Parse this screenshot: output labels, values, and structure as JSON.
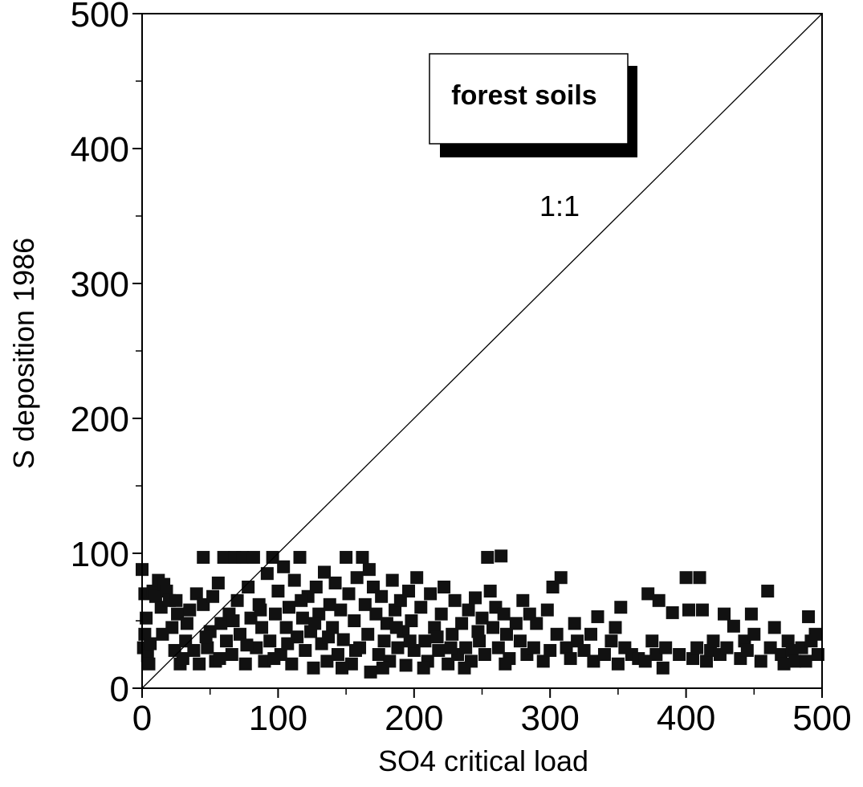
{
  "chart_data": {
    "type": "scatter",
    "title": "",
    "xlabel": "SO4 critical load",
    "ylabel": "S deposition 1986",
    "xlim": [
      0,
      500
    ],
    "ylim": [
      0,
      500
    ],
    "xticks": [
      "0",
      "100",
      "200",
      "300",
      "400",
      "500"
    ],
    "yticks": [
      "0",
      "100",
      "200",
      "300",
      "400",
      "500"
    ],
    "grid": false,
    "legend": {
      "position": "top-center",
      "label": "forest soils"
    },
    "annotations": [
      {
        "text": "1:1",
        "x": 307,
        "y": 350
      }
    ],
    "reference_line": {
      "name": "1:1",
      "points": [
        [
          0,
          0
        ],
        [
          500,
          500
        ]
      ]
    },
    "series": [
      {
        "marker": "square",
        "color": "#111111",
        "points": [
          [
            0,
            88
          ],
          [
            2,
            70
          ],
          [
            3,
            52
          ],
          [
            2,
            40
          ],
          [
            1,
            30
          ],
          [
            4,
            24
          ],
          [
            6,
            33
          ],
          [
            8,
            72
          ],
          [
            10,
            68
          ],
          [
            12,
            80
          ],
          [
            14,
            60
          ],
          [
            16,
            77
          ],
          [
            18,
            72
          ],
          [
            20,
            65
          ],
          [
            22,
            45
          ],
          [
            24,
            28
          ],
          [
            26,
            55
          ],
          [
            28,
            18
          ],
          [
            30,
            22
          ],
          [
            32,
            35
          ],
          [
            35,
            58
          ],
          [
            38,
            28
          ],
          [
            40,
            70
          ],
          [
            42,
            18
          ],
          [
            45,
            97
          ],
          [
            45,
            62
          ],
          [
            48,
            30
          ],
          [
            50,
            42
          ],
          [
            52,
            68
          ],
          [
            54,
            20
          ],
          [
            56,
            78
          ],
          [
            58,
            48
          ],
          [
            60,
            97
          ],
          [
            62,
            35
          ],
          [
            64,
            55
          ],
          [
            66,
            25
          ],
          [
            68,
            97
          ],
          [
            70,
            65
          ],
          [
            72,
            40
          ],
          [
            74,
            97
          ],
          [
            76,
            18
          ],
          [
            78,
            75
          ],
          [
            80,
            52
          ],
          [
            82,
            97
          ],
          [
            84,
            30
          ],
          [
            86,
            62
          ],
          [
            88,
            45
          ],
          [
            90,
            20
          ],
          [
            92,
            85
          ],
          [
            94,
            35
          ],
          [
            96,
            97
          ],
          [
            98,
            55
          ],
          [
            100,
            72
          ],
          [
            102,
            25
          ],
          [
            104,
            90
          ],
          [
            106,
            45
          ],
          [
            108,
            60
          ],
          [
            110,
            18
          ],
          [
            112,
            80
          ],
          [
            114,
            38
          ],
          [
            116,
            97
          ],
          [
            118,
            52
          ],
          [
            120,
            28
          ],
          [
            122,
            68
          ],
          [
            124,
            42
          ],
          [
            126,
            15
          ],
          [
            128,
            75
          ],
          [
            130,
            55
          ],
          [
            132,
            33
          ],
          [
            134,
            86
          ],
          [
            136,
            20
          ],
          [
            138,
            62
          ],
          [
            140,
            45
          ],
          [
            142,
            78
          ],
          [
            144,
            25
          ],
          [
            146,
            58
          ],
          [
            148,
            36
          ],
          [
            150,
            97
          ],
          [
            152,
            70
          ],
          [
            154,
            18
          ],
          [
            156,
            50
          ],
          [
            158,
            82
          ],
          [
            160,
            30
          ],
          [
            162,
            97
          ],
          [
            164,
            62
          ],
          [
            166,
            40
          ],
          [
            168,
            12
          ],
          [
            170,
            75
          ],
          [
            172,
            55
          ],
          [
            174,
            25
          ],
          [
            176,
            68
          ],
          [
            178,
            35
          ],
          [
            180,
            48
          ],
          [
            182,
            20
          ],
          [
            184,
            80
          ],
          [
            186,
            58
          ],
          [
            188,
            30
          ],
          [
            190,
            65
          ],
          [
            192,
            42
          ],
          [
            194,
            17
          ],
          [
            196,
            72
          ],
          [
            198,
            50
          ],
          [
            200,
            28
          ],
          [
            202,
            82
          ],
          [
            205,
            60
          ],
          [
            208,
            35
          ],
          [
            210,
            20
          ],
          [
            212,
            70
          ],
          [
            215,
            45
          ],
          [
            218,
            28
          ],
          [
            220,
            55
          ],
          [
            222,
            75
          ],
          [
            225,
            18
          ],
          [
            228,
            40
          ],
          [
            230,
            65
          ],
          [
            232,
            25
          ],
          [
            235,
            48
          ],
          [
            238,
            30
          ],
          [
            240,
            58
          ],
          [
            242,
            20
          ],
          [
            245,
            67
          ],
          [
            248,
            35
          ],
          [
            250,
            52
          ],
          [
            252,
            25
          ],
          [
            254,
            97
          ],
          [
            256,
            72
          ],
          [
            258,
            45
          ],
          [
            260,
            60
          ],
          [
            262,
            30
          ],
          [
            264,
            98
          ],
          [
            266,
            55
          ],
          [
            268,
            40
          ],
          [
            270,
            22
          ],
          [
            275,
            48
          ],
          [
            278,
            35
          ],
          [
            280,
            65
          ],
          [
            283,
            25
          ],
          [
            285,
            55
          ],
          [
            288,
            30
          ],
          [
            290,
            48
          ],
          [
            295,
            20
          ],
          [
            298,
            58
          ],
          [
            300,
            28
          ],
          [
            302,
            75
          ],
          [
            305,
            40
          ],
          [
            308,
            82
          ],
          [
            312,
            30
          ],
          [
            315,
            22
          ],
          [
            318,
            48
          ],
          [
            320,
            35
          ],
          [
            325,
            28
          ],
          [
            330,
            40
          ],
          [
            332,
            20
          ],
          [
            335,
            53
          ],
          [
            340,
            25
          ],
          [
            345,
            35
          ],
          [
            348,
            45
          ],
          [
            350,
            18
          ],
          [
            352,
            60
          ],
          [
            355,
            30
          ],
          [
            360,
            25
          ],
          [
            365,
            22
          ],
          [
            370,
            20
          ],
          [
            372,
            70
          ],
          [
            375,
            35
          ],
          [
            378,
            25
          ],
          [
            380,
            65
          ],
          [
            383,
            15
          ],
          [
            385,
            30
          ],
          [
            390,
            56
          ],
          [
            395,
            25
          ],
          [
            400,
            82
          ],
          [
            402,
            58
          ],
          [
            405,
            22
          ],
          [
            408,
            30
          ],
          [
            410,
            82
          ],
          [
            412,
            58
          ],
          [
            415,
            20
          ],
          [
            418,
            28
          ],
          [
            420,
            35
          ],
          [
            425,
            25
          ],
          [
            428,
            55
          ],
          [
            430,
            30
          ],
          [
            435,
            46
          ],
          [
            440,
            22
          ],
          [
            443,
            35
          ],
          [
            445,
            28
          ],
          [
            448,
            55
          ],
          [
            450,
            40
          ],
          [
            455,
            20
          ],
          [
            460,
            72
          ],
          [
            462,
            30
          ],
          [
            465,
            45
          ],
          [
            470,
            25
          ],
          [
            472,
            18
          ],
          [
            475,
            35
          ],
          [
            478,
            28
          ],
          [
            480,
            20
          ],
          [
            485,
            30
          ],
          [
            488,
            20
          ],
          [
            490,
            53
          ],
          [
            492,
            35
          ],
          [
            495,
            40
          ],
          [
            497,
            25
          ],
          [
            5,
            18
          ],
          [
            15,
            40
          ],
          [
            25,
            65
          ],
          [
            33,
            48
          ],
          [
            47,
            38
          ],
          [
            57,
            22
          ],
          [
            67,
            50
          ],
          [
            77,
            32
          ],
          [
            87,
            58
          ],
          [
            97,
            22
          ],
          [
            107,
            33
          ],
          [
            117,
            65
          ],
          [
            127,
            48
          ],
          [
            137,
            38
          ],
          [
            147,
            15
          ],
          [
            157,
            28
          ],
          [
            167,
            88
          ],
          [
            177,
            15
          ],
          [
            187,
            45
          ],
          [
            197,
            35
          ],
          [
            207,
            15
          ],
          [
            217,
            38
          ],
          [
            227,
            30
          ],
          [
            237,
            15
          ],
          [
            247,
            42
          ],
          [
            267,
            18
          ]
        ]
      }
    ]
  }
}
